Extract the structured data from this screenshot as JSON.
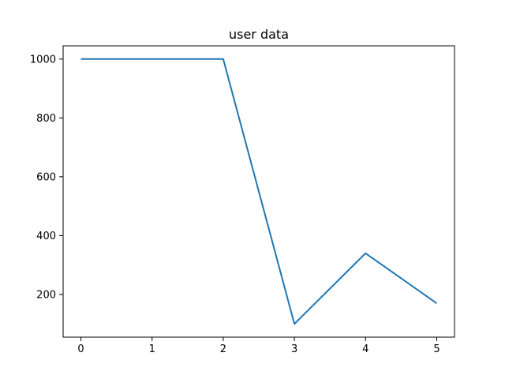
{
  "chart_data": {
    "type": "line",
    "title": "user data",
    "xlabel": "",
    "ylabel": "",
    "x": [
      0,
      1,
      2,
      3,
      4,
      5
    ],
    "series": [
      {
        "values": [
          1000,
          1000,
          1000,
          100,
          340,
          170
        ],
        "color": "#1f77b4"
      }
    ],
    "xlim": [
      -0.25,
      5.25
    ],
    "ylim": [
      55,
      1045
    ],
    "xticks": [
      0,
      1,
      2,
      3,
      4,
      5
    ],
    "yticks": [
      200,
      400,
      600,
      800,
      1000
    ],
    "grid": false,
    "legend": "none"
  }
}
